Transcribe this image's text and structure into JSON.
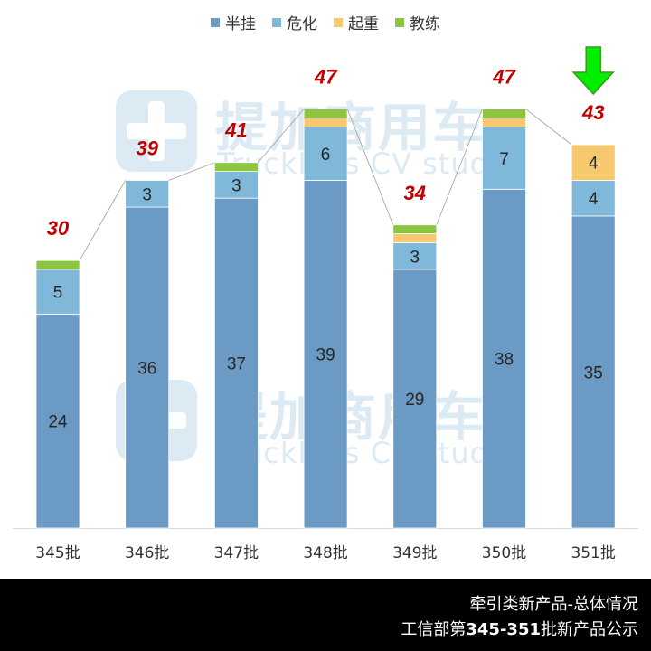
{
  "chart_data": {
    "type": "bar",
    "stacked": true,
    "categories": [
      "345批",
      "346批",
      "347批",
      "348批",
      "349批",
      "350批",
      "351批"
    ],
    "series": [
      {
        "name": "半挂",
        "color": "#6b9ac4",
        "values": [
          24,
          36,
          37,
          39,
          29,
          38,
          35
        ]
      },
      {
        "name": "危化",
        "color": "#7fb8d8",
        "values": [
          5,
          3,
          3,
          6,
          3,
          7,
          4
        ]
      },
      {
        "name": "起重",
        "color": "#f7c96e",
        "values": [
          0,
          0,
          0,
          1,
          1,
          1,
          4
        ]
      },
      {
        "name": "教练",
        "color": "#8cc63f",
        "values": [
          1,
          0,
          1,
          1,
          1,
          1,
          0
        ]
      }
    ],
    "segment_labels": [
      [
        "24",
        "5",
        "",
        ""
      ],
      [
        "36",
        "3",
        "",
        ""
      ],
      [
        "37",
        "3",
        "",
        ""
      ],
      [
        "39",
        "6",
        "",
        ""
      ],
      [
        "29",
        "3",
        "",
        ""
      ],
      [
        "38",
        "7",
        "",
        ""
      ],
      [
        "35",
        "4",
        "4",
        ""
      ]
    ],
    "totals": [
      30,
      39,
      41,
      47,
      34,
      47,
      43
    ],
    "total_label_color": "#c00000",
    "legend_position": "top-center",
    "ylim": [
      0,
      50
    ],
    "grid": false,
    "highlight_arrow_index": 6,
    "highlight_arrow_color": "#00ee00"
  },
  "watermark": {
    "cn": "提加商用车",
    "en": "TruckPlus CV studio"
  },
  "footer": {
    "line1": "牵引类新产品-总体情况",
    "line2_prefix": "工信部第",
    "line2_bold": "345-351",
    "line2_suffix": "批新产品公示"
  }
}
